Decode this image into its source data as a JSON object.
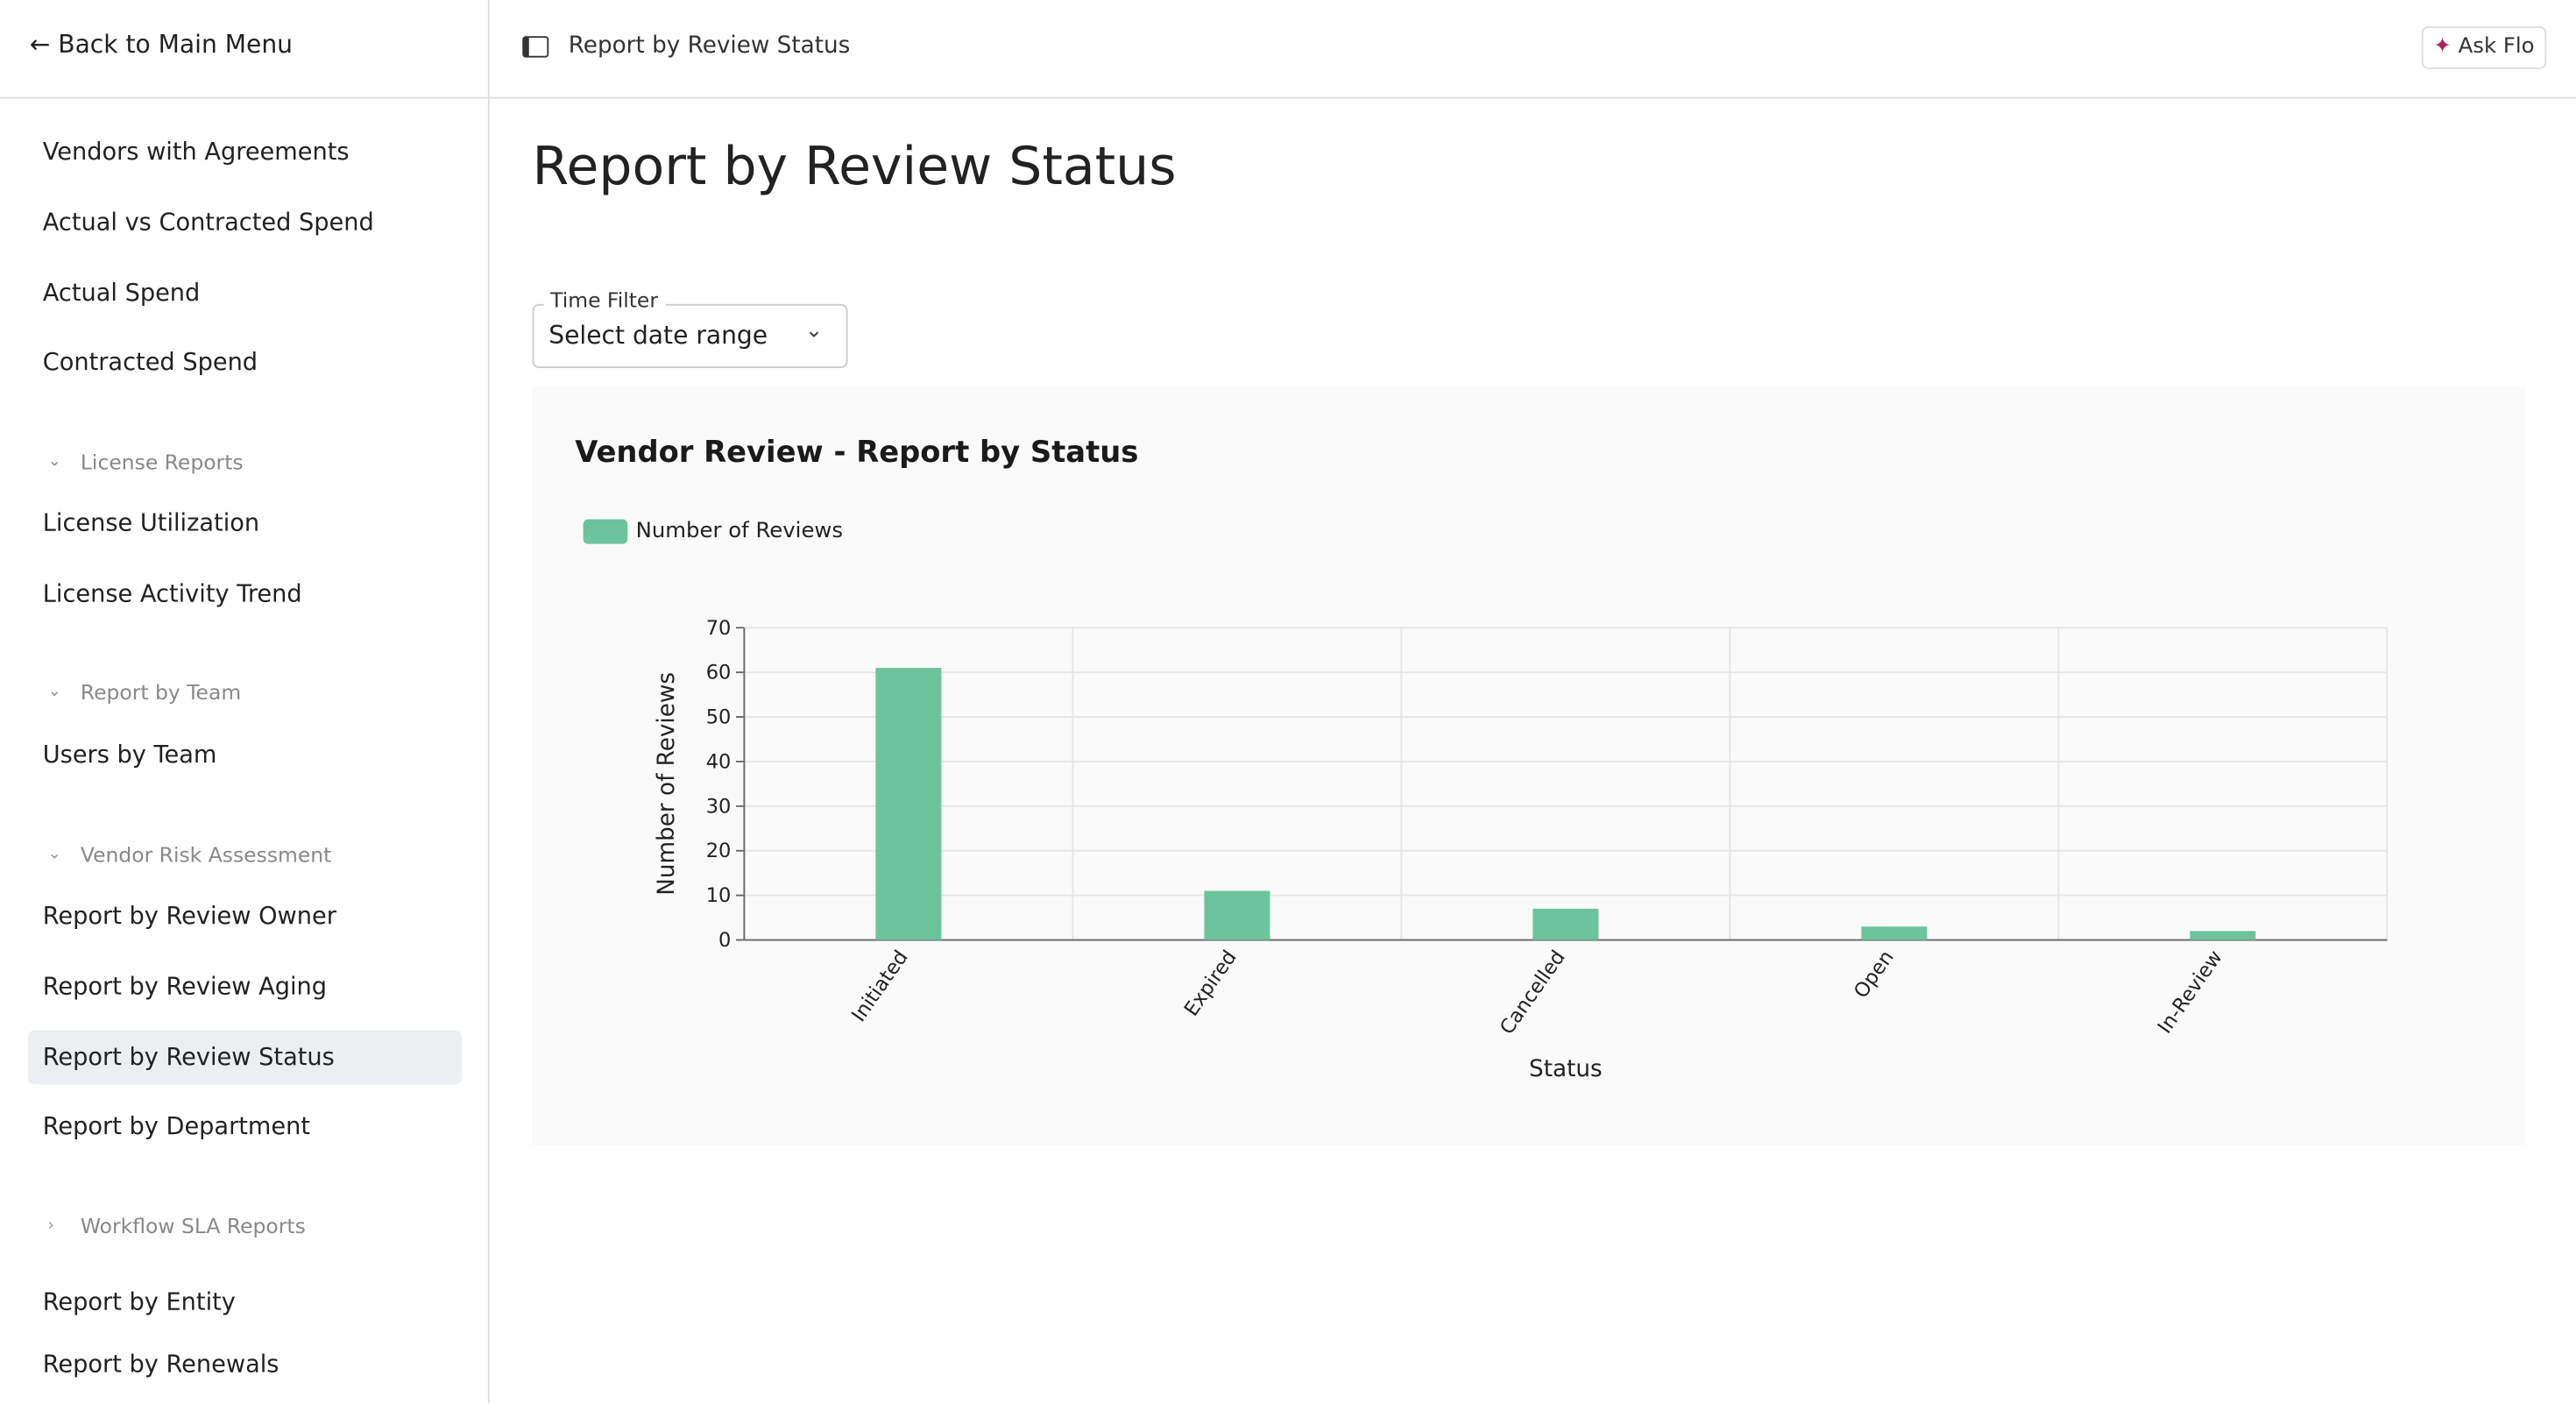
{
  "sidebar": {
    "back": "Back to Main Menu",
    "sections": [
      {
        "links": [
          "Vendors with Agreements",
          "Actual vs Contracted Spend",
          "Actual Spend",
          "Contracted Spend"
        ]
      },
      {
        "heading": "License Reports",
        "links": [
          "License Utilization",
          "License Activity Trend"
        ]
      },
      {
        "heading": "Report by Team",
        "links": [
          "Users by Team"
        ]
      },
      {
        "heading": "Vendor Risk Assessment",
        "links": [
          "Report by Review Owner",
          "Report by Review Aging",
          "Report by Review Status",
          "Report by Department"
        ]
      },
      {
        "heading": "Workflow SLA Reports",
        "links": [
          "Report by Entity",
          "Report by Renewals"
        ]
      }
    ]
  },
  "header": {
    "title": "Report by Review Status",
    "ask": "Ask Flo"
  },
  "page_title": "Report by Review Status",
  "filter": {
    "label": "Time Filter",
    "placeholder": "Select date range"
  },
  "chart_data": {
    "type": "bar",
    "title": "Vendor Review - Report by Status",
    "x_label": "Status",
    "y_label": "Number of Reviews",
    "categories": [
      "Initiated",
      "Expired",
      "Cancelled",
      "Open",
      "In-Review"
    ],
    "series": [
      {
        "name": "Number of Reviews",
        "color": "#6cc49c",
        "values": [
          61,
          11,
          7,
          3,
          2
        ]
      }
    ],
    "ylim": [
      0,
      70
    ],
    "yticks": [
      0,
      10,
      20,
      30,
      40,
      50,
      60,
      70
    ],
    "grid": true
  }
}
